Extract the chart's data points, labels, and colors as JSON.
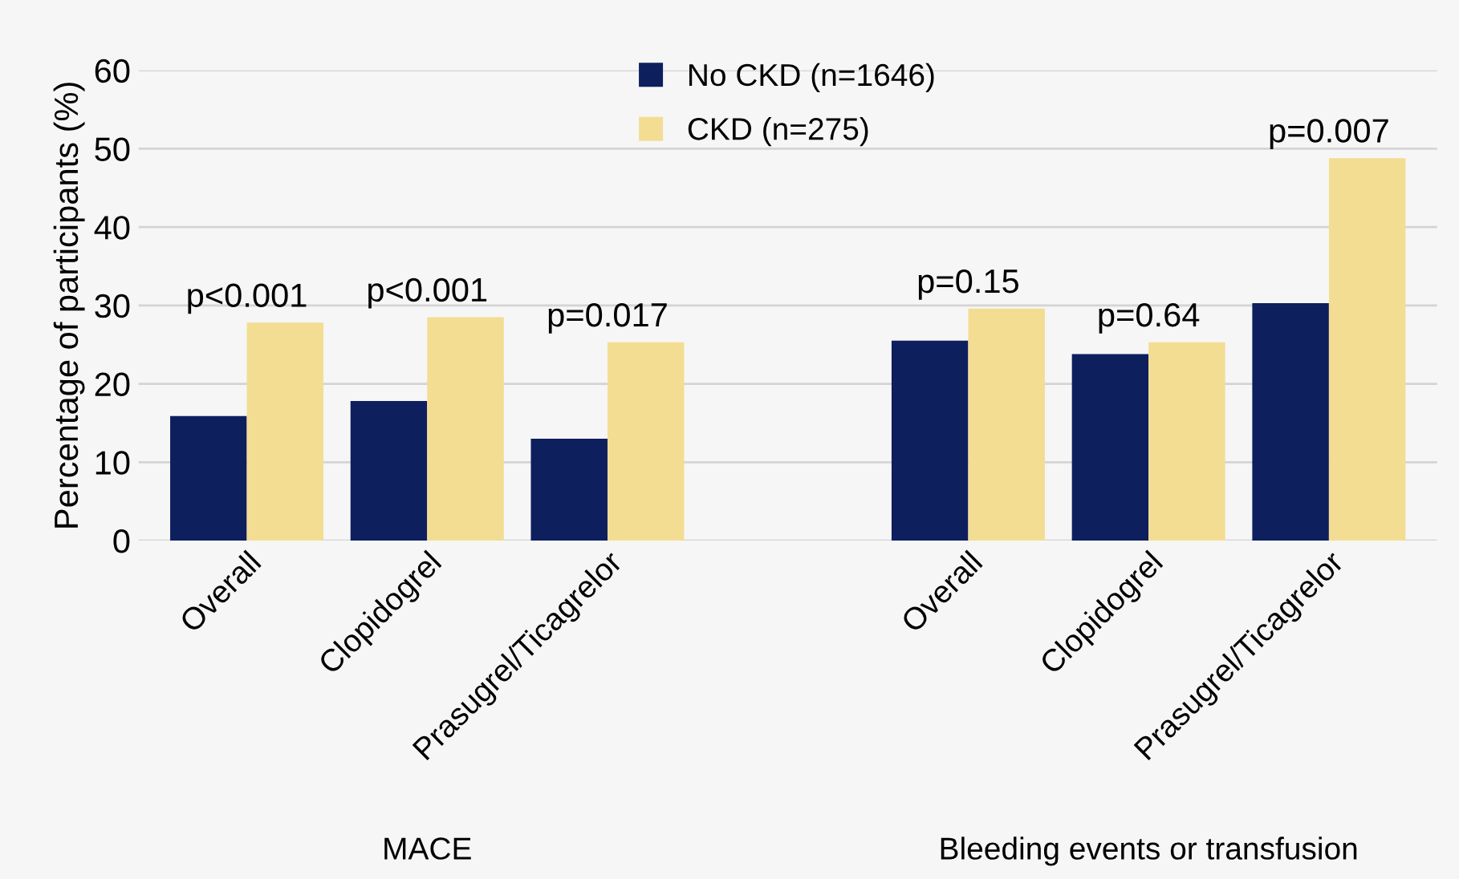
{
  "chart_data": {
    "type": "bar",
    "ylabel": "Percentage of participants (%)",
    "categories": [
      "Overall",
      "Clopidogrel",
      "Prasugrel/Ticagrelor",
      null,
      "Overall",
      "Clopidogrel",
      "Prasugrel/Ticagrelor"
    ],
    "series": [
      {
        "name": "No CKD (n=1646)",
        "color": "#0e1f5e",
        "values": [
          15.9,
          17.8,
          13.0,
          null,
          25.5,
          23.8,
          30.3
        ]
      },
      {
        "name": "CKD (n=275)",
        "color": "#f3dd93",
        "values": [
          27.8,
          28.5,
          25.3,
          null,
          29.6,
          25.3,
          48.8
        ]
      }
    ],
    "ylim": [
      0,
      60
    ],
    "yticks": [
      0,
      10,
      20,
      30,
      40,
      50,
      60
    ],
    "grid": "y",
    "legend": "top",
    "annotations": [
      "p<0.001",
      "p<0.001",
      "p=0.017",
      "p=0.15",
      "p=0.64",
      "p=0.007",
      "MACE",
      "Bleeding events or transfusion"
    ]
  }
}
